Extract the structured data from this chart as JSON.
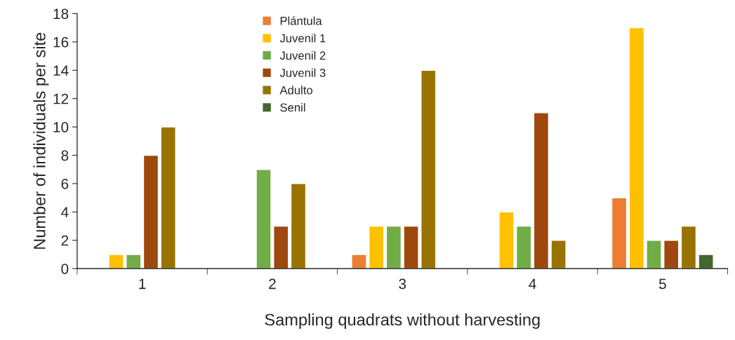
{
  "chart_data": {
    "type": "bar",
    "xlabel": "Sampling quadrats without harvesting",
    "ylabel": "Number of individuals per site",
    "categories": [
      "1",
      "2",
      "3",
      "4",
      "5"
    ],
    "series": [
      {
        "name": "Plántula",
        "color": "#ed7d31",
        "values": [
          null,
          null,
          1,
          null,
          5
        ]
      },
      {
        "name": "Juvenil 1",
        "color": "#ffc000",
        "values": [
          1,
          null,
          3,
          4,
          17
        ]
      },
      {
        "name": "Juvenil 2",
        "color": "#70ad47",
        "values": [
          1,
          7,
          3,
          3,
          2
        ]
      },
      {
        "name": "Juvenil 3",
        "color": "#9e480e",
        "values": [
          8,
          3,
          3,
          11,
          2
        ]
      },
      {
        "name": "Adulto",
        "color": "#997300",
        "values": [
          10,
          6,
          14,
          2,
          3
        ]
      },
      {
        "name": "Senil",
        "color": "#43682b",
        "values": [
          null,
          null,
          null,
          null,
          1
        ]
      }
    ],
    "ylim": [
      0,
      18
    ],
    "yticks": [
      0,
      2,
      4,
      6,
      8,
      10,
      12,
      14,
      16,
      18
    ],
    "grid": false,
    "legend": "top"
  }
}
